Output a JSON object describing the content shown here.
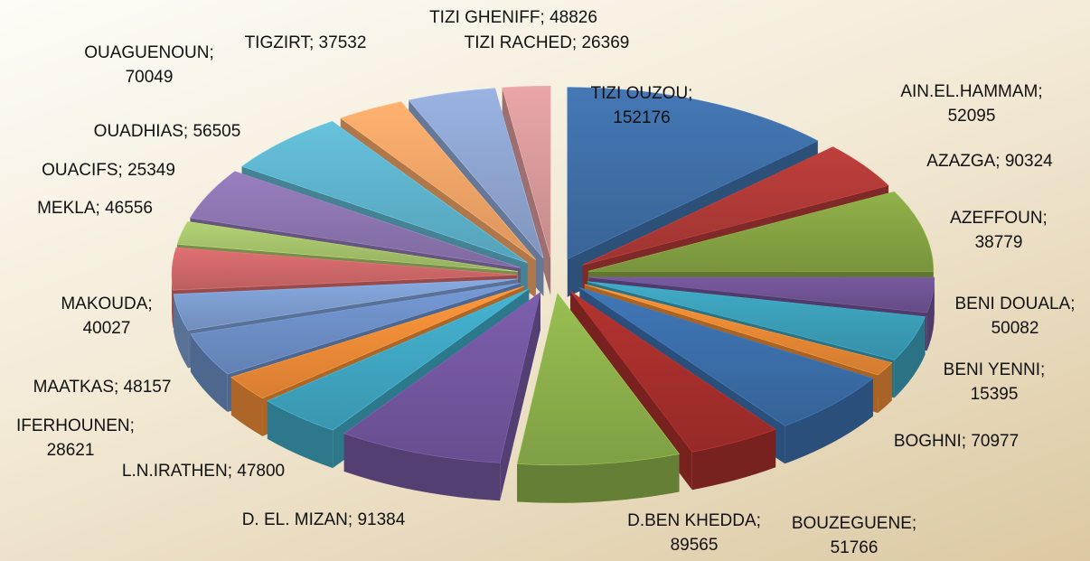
{
  "chart_data": {
    "type": "pie3d",
    "values": [
      152176,
      52095,
      90324,
      38779,
      50082,
      15395,
      70977,
      51766,
      89565,
      91384,
      47800,
      28621,
      48157,
      40027,
      46556,
      25349,
      56505,
      70049,
      37532,
      48826,
      26369
    ],
    "value_labels": [
      "TIZI OUZOU; 152176",
      "AIN.EL.HAMMAM; 52095",
      "AZAZGA; 90324",
      "AZEFFOUN; 38779",
      "BENI DOUALA; 50082",
      "BENI YENNI; 15395",
      "BOGHNI; 70977",
      "BOUZEGUENE; 51766",
      "D.BEN KHEDDA; 89565",
      "D. EL. MIZAN; 91384",
      "L.N.IRATHEN; 47800",
      "IFERHOUNEN; 28621",
      "MAATKAS; 48157",
      "MAKOUDA; 40027",
      "MEKLA; 46556",
      "OUACIFS; 25349",
      "OUADHIAS; 56505",
      "OUAGUENOUN; 70049",
      "TIGZIRT; 37532",
      "TIZI GHENIFF; 48826",
      "TIZI RACHED; 26369"
    ],
    "colors": [
      "#3f6fa8",
      "#b03a37",
      "#86a444",
      "#6f5393",
      "#3c9fb9",
      "#e98a35",
      "#3b6ea9",
      "#a72f2c",
      "#8db14c",
      "#7457a0",
      "#40a7c2",
      "#f08c38",
      "#6d8fc7",
      "#7d9dd0",
      "#d0686a",
      "#a6c26b",
      "#8d76b1",
      "#5eb4cd",
      "#f4a568",
      "#8fa6d1",
      "#d99a9c",
      "#b9cf91"
    ]
  }
}
